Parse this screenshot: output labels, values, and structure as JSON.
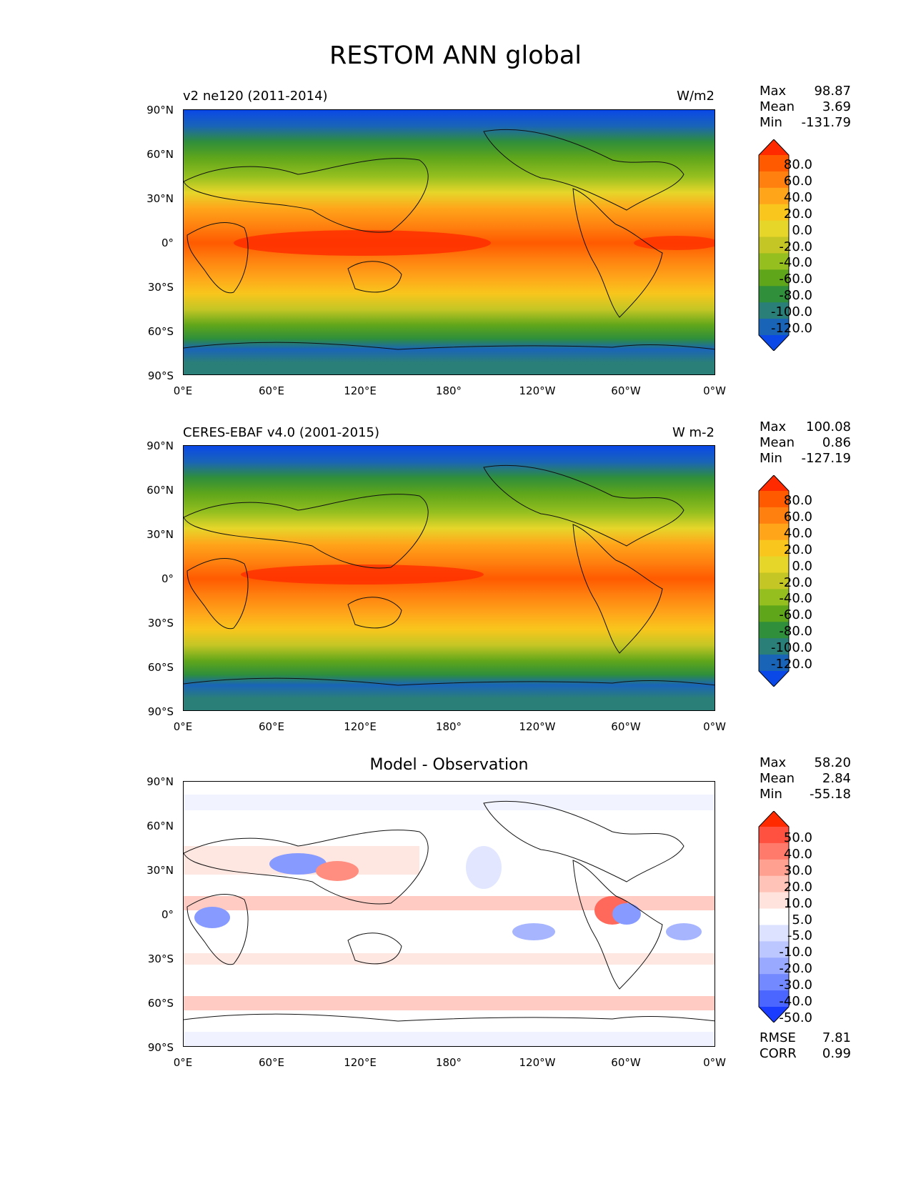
{
  "title": "RESTOM ANN global",
  "lat_ticks": [
    "90°N",
    "60°N",
    "30°N",
    "0°",
    "30°S",
    "60°S",
    "90°S"
  ],
  "lon_ticks": [
    "0°E",
    "60°E",
    "120°E",
    "180°",
    "120°W",
    "60°W",
    "0°W"
  ],
  "panels": [
    {
      "left_title": "v2 ne120 (2011-2014)",
      "right_title": "W/m2",
      "center_title": "",
      "stats": {
        "max_label": "Max",
        "max": "98.87",
        "mean_label": "Mean",
        "mean": "3.69",
        "min_label": "Min",
        "min": "-131.79"
      },
      "colorbar_labels": [
        "80.0",
        "60.0",
        "40.0",
        "20.0",
        "0.0",
        "-20.0",
        "-40.0",
        "-60.0",
        "-80.0",
        "-100.0",
        "-120.0"
      ],
      "colorbar_colors": [
        "#ff2a00",
        "#ff5a00",
        "#ff7f0f",
        "#ffa51a",
        "#f8c61c",
        "#e6d62a",
        "#c4c625",
        "#95bf1f",
        "#5fa61b",
        "#2f8f3a",
        "#2a7f78",
        "#1a64b8",
        "#0a48e8"
      ]
    },
    {
      "left_title": "CERES-EBAF v4.0 (2001-2015)",
      "right_title": "W m-2",
      "center_title": "",
      "stats": {
        "max_label": "Max",
        "max": "100.08",
        "mean_label": "Mean",
        "mean": "0.86",
        "min_label": "Min",
        "min": "-127.19"
      },
      "colorbar_labels": [
        "80.0",
        "60.0",
        "40.0",
        "20.0",
        "0.0",
        "-20.0",
        "-40.0",
        "-60.0",
        "-80.0",
        "-100.0",
        "-120.0"
      ],
      "colorbar_colors": [
        "#ff2a00",
        "#ff5a00",
        "#ff7f0f",
        "#ffa51a",
        "#f8c61c",
        "#e6d62a",
        "#c4c625",
        "#95bf1f",
        "#5fa61b",
        "#2f8f3a",
        "#2a7f78",
        "#1a64b8",
        "#0a48e8"
      ]
    },
    {
      "left_title": "",
      "right_title": "",
      "center_title": "Model - Observation",
      "stats": {
        "max_label": "Max",
        "max": "58.20",
        "mean_label": "Mean",
        "mean": "2.84",
        "min_label": "Min",
        "min": "-55.18"
      },
      "colorbar_labels": [
        "50.0",
        "40.0",
        "30.0",
        "20.0",
        "10.0",
        "5.0",
        "-5.0",
        "-10.0",
        "-20.0",
        "-30.0",
        "-40.0",
        "-50.0"
      ],
      "colorbar_colors": [
        "#ff2a00",
        "#ff5040",
        "#ff7a6a",
        "#ffa090",
        "#ffc3b8",
        "#ffe3dc",
        "#ffffff",
        "#dde3ff",
        "#bcc7ff",
        "#98a9ff",
        "#7389ff",
        "#4a66ff",
        "#1a3cff"
      ],
      "metrics": {
        "rmse_label": "RMSE",
        "rmse": "7.81",
        "corr_label": "CORR",
        "corr": "0.99"
      }
    }
  ]
}
